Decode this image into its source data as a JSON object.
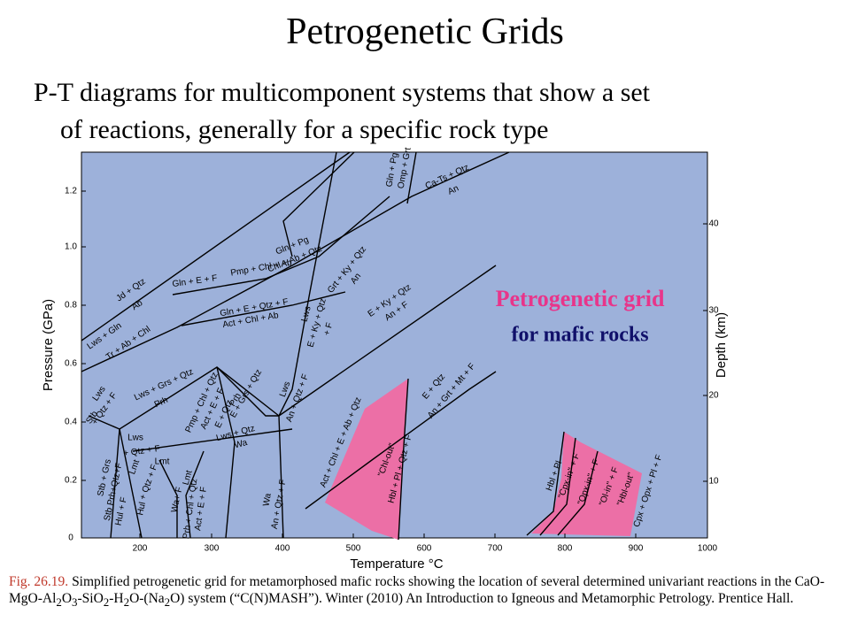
{
  "slide": {
    "title": "Petrogenetic Grids",
    "bullet_lines": [
      "P-T diagrams for multicomponent systems that show a set",
      "of reactions, generally for a specific rock type"
    ]
  },
  "figure": {
    "x_axis": {
      "label": "Temperature °C",
      "ticks": [
        "200",
        "300",
        "400",
        "500",
        "600",
        "700",
        "800",
        "900",
        "1000"
      ]
    },
    "y_axis": {
      "label": "Pressure (GPa)",
      "ticks": [
        "0",
        "0.2",
        "0.4",
        "0.6",
        "0.8",
        "1.0",
        "1.2"
      ]
    },
    "y2_axis": {
      "label": "Depth (km)",
      "ticks": [
        "10",
        "20",
        "30",
        "40"
      ]
    },
    "callout": [
      "Petrogenetic grid",
      "for mafic rocks"
    ],
    "reaction_labels": [
      "Omp + Grt",
      "Gln + Pg",
      "Ca-Ts + Qtz",
      "An",
      "Gln + Pg",
      "Chl + Ab + Qtz",
      "Grt + Ky + Qtz",
      "An",
      "Gln + E + F",
      "Pmp + Chl + Ab",
      "Jd + Qtz",
      "Ab",
      "Gln + E + Qtz + F",
      "Act + Chl + Ab",
      "Lws",
      "E + Ky + Qtz",
      "+ F",
      "E + Ky + Qtz",
      "An + F",
      "Lws + Gln",
      "Tr + Ab + Chl",
      "Lws + Grs + Qtz",
      "Prh",
      "Lws",
      "+ Qtz + F",
      "Stb",
      "Pmp + Chl + Qtz",
      "Act + E + F",
      "E + Qtz",
      "E + Grs + Qtz",
      "Prh",
      "Lws",
      "An + Qtz + F",
      "E + Qtz",
      "An + Grt + Mt + F",
      "Lws",
      "+ Qtz + F",
      "Lmt",
      "Lws + Qtz",
      "Wa",
      "Stb + Grs",
      "Stb Prh+Qtz+F",
      "Lmt",
      "+ Qtz + F",
      "Hul + F",
      "Hul",
      "Lmt",
      "Wa+ F",
      "Prh + Chl + Qtz",
      "Act + E + F",
      "Wa",
      "An + Qtz + F",
      "Act + Chl + E + Ab + Qtz",
      "\"Chl-out\"",
      "Hbl + Pl + Qtz + F",
      "Hbl + Pl",
      "\"Cpx-in\" + F",
      "\"Opx-in\" + F",
      "\"Ol-in\" + F",
      "\"Hbl-out\"",
      "Cpx + Opx + Pl + F"
    ]
  },
  "caption": {
    "label": "Fig. 26.19.",
    "runs": [
      {
        "text": " Simplified petrogenetic grid for metamorphosed mafic rocks showing the location of several determined univariant reactions in the CaO-MgO-Al"
      },
      {
        "sub": "2"
      },
      {
        "text": "O"
      },
      {
        "sub": "3"
      },
      {
        "text": "-SiO"
      },
      {
        "sub": "2"
      },
      {
        "text": "-H"
      },
      {
        "sub": "2"
      },
      {
        "text": "O-(Na"
      },
      {
        "sub": "2"
      },
      {
        "text": "O) system (“C(N)MASH”). Winter (2010) An Introduction to Igneous and Metamorphic Petrology. Prentice Hall."
      }
    ]
  }
}
